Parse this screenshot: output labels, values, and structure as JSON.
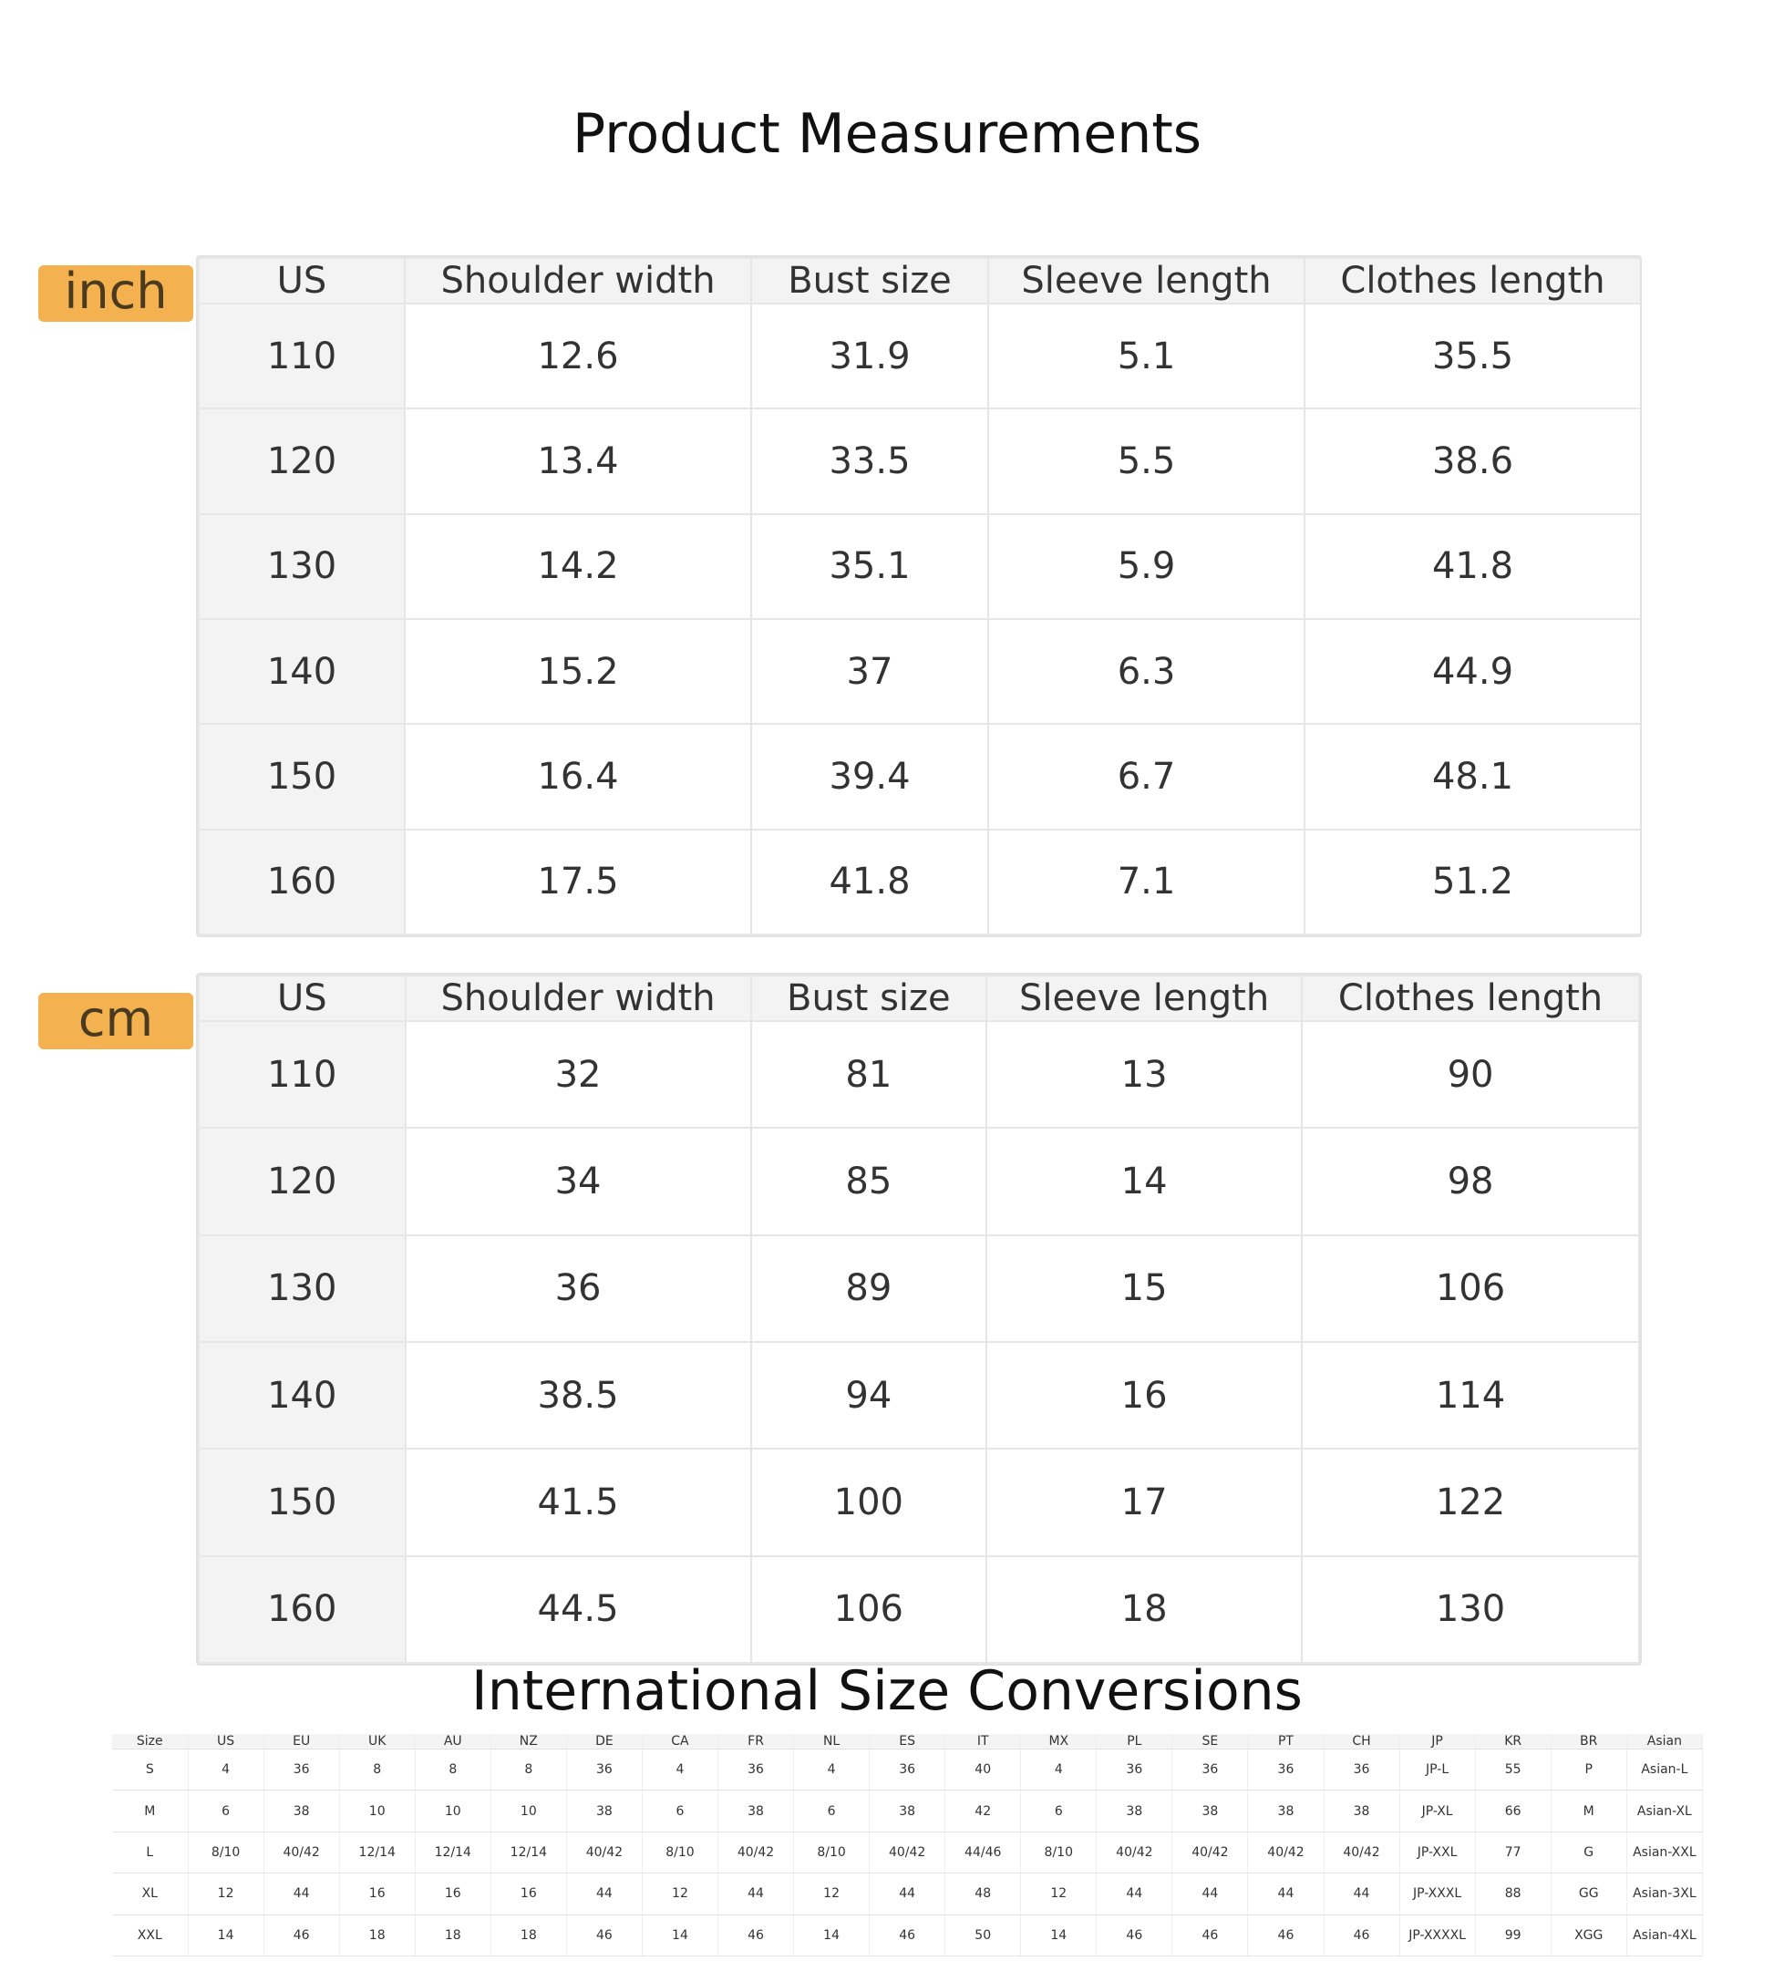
{
  "page_title": "Product Measurements",
  "inch_section": {
    "unit": "inch",
    "headers": [
      "US",
      "Shoulder width",
      "Bust size",
      "Sleeve length",
      "Clothes length"
    ],
    "rows": [
      [
        "110",
        "12.6",
        "31.9",
        "5.1",
        "35.5"
      ],
      [
        "120",
        "13.4",
        "33.5",
        "5.5",
        "38.6"
      ],
      [
        "130",
        "14.2",
        "35.1",
        "5.9",
        "41.8"
      ],
      [
        "140",
        "15.2",
        "37",
        "6.3",
        "44.9"
      ],
      [
        "150",
        "16.4",
        "39.4",
        "6.7",
        "48.1"
      ],
      [
        "160",
        "17.5",
        "41.8",
        "7.1",
        "51.2"
      ]
    ]
  },
  "cm_section": {
    "unit": "cm",
    "headers": [
      "US",
      "Shoulder width",
      "Bust size",
      "Sleeve length",
      "Clothes length"
    ],
    "rows": [
      [
        "110",
        "32",
        "81",
        "13",
        "90"
      ],
      [
        "120",
        "34",
        "85",
        "14",
        "98"
      ],
      [
        "130",
        "36",
        "89",
        "15",
        "106"
      ],
      [
        "140",
        "38.5",
        "94",
        "16",
        "114"
      ],
      [
        "150",
        "41.5",
        "100",
        "17",
        "122"
      ],
      [
        "160",
        "44.5",
        "106",
        "18",
        "130"
      ]
    ]
  },
  "conversion": {
    "title": "International Size Conversions",
    "headers": [
      "Size",
      "US",
      "EU",
      "UK",
      "AU",
      "NZ",
      "DE",
      "CA",
      "FR",
      "NL",
      "ES",
      "IT",
      "MX",
      "PL",
      "SE",
      "PT",
      "CH",
      "JP",
      "KR",
      "BR",
      "Asian"
    ],
    "rows": [
      [
        "S",
        "4",
        "36",
        "8",
        "8",
        "8",
        "36",
        "4",
        "36",
        "4",
        "36",
        "40",
        "4",
        "36",
        "36",
        "36",
        "36",
        "JP-L",
        "55",
        "P",
        "Asian-L"
      ],
      [
        "M",
        "6",
        "38",
        "10",
        "10",
        "10",
        "38",
        "6",
        "38",
        "6",
        "38",
        "42",
        "6",
        "38",
        "38",
        "38",
        "38",
        "JP-XL",
        "66",
        "M",
        "Asian-XL"
      ],
      [
        "L",
        "8/10",
        "40/42",
        "12/14",
        "12/14",
        "12/14",
        "40/42",
        "8/10",
        "40/42",
        "8/10",
        "40/42",
        "44/46",
        "8/10",
        "40/42",
        "40/42",
        "40/42",
        "40/42",
        "JP-XXL",
        "77",
        "G",
        "Asian-XXL"
      ],
      [
        "XL",
        "12",
        "44",
        "16",
        "16",
        "16",
        "44",
        "12",
        "44",
        "12",
        "44",
        "48",
        "12",
        "44",
        "44",
        "44",
        "44",
        "JP-XXXL",
        "88",
        "GG",
        "Asian-3XL"
      ],
      [
        "XXL",
        "14",
        "46",
        "18",
        "18",
        "18",
        "46",
        "14",
        "46",
        "14",
        "46",
        "50",
        "14",
        "46",
        "46",
        "46",
        "46",
        "JP-XXXXL",
        "99",
        "XGG",
        "Asian-4XL"
      ]
    ]
  }
}
